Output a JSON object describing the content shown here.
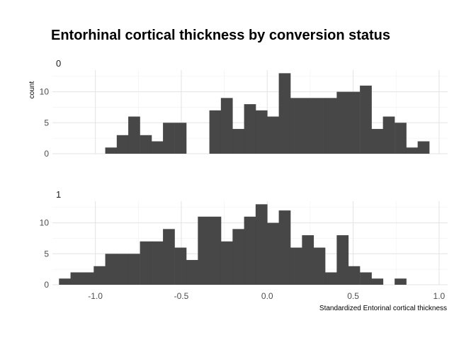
{
  "chart_data": {
    "type": "bar",
    "title": "Entorhinal cortical thickness by conversion status",
    "xlabel": "Standardized Entorinal cortical thickness",
    "ylabel": "count",
    "xlim": [
      -1.25,
      1.05
    ],
    "ylim": [
      0,
      13.5
    ],
    "xticks": [
      -1.0,
      -0.5,
      0.0,
      0.5,
      1.0
    ],
    "xtick_labels": [
      "-1.0",
      "-0.5",
      "0.0",
      "0.5",
      "1.0"
    ],
    "yticks": [
      0,
      5,
      10
    ],
    "ytick_labels": [
      "0",
      "5",
      "10"
    ],
    "bin_width": 0.0673,
    "grid": true,
    "colors": {
      "bar": "#474747",
      "grid": "#e3e3e3",
      "grid_minor": "#f0f0f0"
    },
    "facets": [
      {
        "label": "0",
        "bins": [
          {
            "x": -0.909,
            "count": 1
          },
          {
            "x": -0.842,
            "count": 3
          },
          {
            "x": -0.775,
            "count": 6
          },
          {
            "x": -0.707,
            "count": 3
          },
          {
            "x": -0.64,
            "count": 2
          },
          {
            "x": -0.573,
            "count": 5
          },
          {
            "x": -0.505,
            "count": 5
          },
          {
            "x": -0.303,
            "count": 7
          },
          {
            "x": -0.236,
            "count": 9
          },
          {
            "x": -0.168,
            "count": 4
          },
          {
            "x": -0.101,
            "count": 8
          },
          {
            "x": -0.034,
            "count": 7
          },
          {
            "x": 0.034,
            "count": 6
          },
          {
            "x": 0.101,
            "count": 13
          },
          {
            "x": 0.168,
            "count": 9
          },
          {
            "x": 0.236,
            "count": 9
          },
          {
            "x": 0.303,
            "count": 9
          },
          {
            "x": 0.37,
            "count": 9
          },
          {
            "x": 0.438,
            "count": 10
          },
          {
            "x": 0.505,
            "count": 10
          },
          {
            "x": 0.573,
            "count": 11
          },
          {
            "x": 0.64,
            "count": 4
          },
          {
            "x": 0.707,
            "count": 6
          },
          {
            "x": 0.775,
            "count": 5
          },
          {
            "x": 0.842,
            "count": 1
          },
          {
            "x": 0.909,
            "count": 2
          }
        ]
      },
      {
        "label": "1",
        "bins": [
          {
            "x": -1.178,
            "count": 1
          },
          {
            "x": -1.111,
            "count": 2
          },
          {
            "x": -1.044,
            "count": 2
          },
          {
            "x": -0.976,
            "count": 3
          },
          {
            "x": -0.909,
            "count": 5
          },
          {
            "x": -0.842,
            "count": 5
          },
          {
            "x": -0.775,
            "count": 5
          },
          {
            "x": -0.707,
            "count": 7
          },
          {
            "x": -0.64,
            "count": 7
          },
          {
            "x": -0.573,
            "count": 9
          },
          {
            "x": -0.505,
            "count": 6
          },
          {
            "x": -0.438,
            "count": 4
          },
          {
            "x": -0.37,
            "count": 11
          },
          {
            "x": -0.303,
            "count": 11
          },
          {
            "x": -0.236,
            "count": 7
          },
          {
            "x": -0.168,
            "count": 9
          },
          {
            "x": -0.101,
            "count": 11
          },
          {
            "x": -0.034,
            "count": 13
          },
          {
            "x": 0.034,
            "count": 10
          },
          {
            "x": 0.101,
            "count": 12
          },
          {
            "x": 0.168,
            "count": 6
          },
          {
            "x": 0.236,
            "count": 8
          },
          {
            "x": 0.303,
            "count": 6
          },
          {
            "x": 0.37,
            "count": 2
          },
          {
            "x": 0.438,
            "count": 8
          },
          {
            "x": 0.505,
            "count": 3
          },
          {
            "x": 0.573,
            "count": 2
          },
          {
            "x": 0.64,
            "count": 1
          },
          {
            "x": 0.775,
            "count": 1
          }
        ]
      }
    ]
  }
}
